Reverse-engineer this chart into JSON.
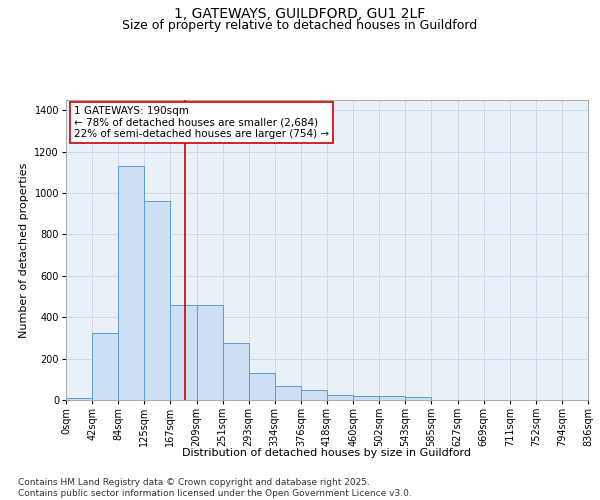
{
  "title_line1": "1, GATEWAYS, GUILDFORD, GU1 2LF",
  "title_line2": "Size of property relative to detached houses in Guildford",
  "xlabel": "Distribution of detached houses by size in Guildford",
  "ylabel": "Number of detached properties",
  "bin_labels": [
    "0sqm",
    "42sqm",
    "84sqm",
    "125sqm",
    "167sqm",
    "209sqm",
    "251sqm",
    "293sqm",
    "334sqm",
    "376sqm",
    "418sqm",
    "460sqm",
    "502sqm",
    "543sqm",
    "585sqm",
    "627sqm",
    "669sqm",
    "711sqm",
    "752sqm",
    "794sqm",
    "836sqm"
  ],
  "bar_heights": [
    10,
    325,
    1130,
    960,
    460,
    460,
    275,
    130,
    70,
    50,
    25,
    20,
    20,
    15,
    0,
    0,
    0,
    0,
    0,
    0,
    0
  ],
  "bar_color": "#ccdff3",
  "bar_edge_color": "#5b9bd5",
  "background_color": "#e8f0f8",
  "grid_color": "#d0d8e8",
  "red_line_x": 4.524,
  "annotation_text": "1 GATEWAYS: 190sqm\n← 78% of detached houses are smaller (2,684)\n22% of semi-detached houses are larger (754) →",
  "annotation_box_color": "#ffffff",
  "annotation_box_edge": "#cc0000",
  "ylim": [
    0,
    1450
  ],
  "yticks": [
    0,
    200,
    400,
    600,
    800,
    1000,
    1200,
    1400
  ],
  "footer_text": "Contains HM Land Registry data © Crown copyright and database right 2025.\nContains public sector information licensed under the Open Government Licence v3.0.",
  "title_fontsize": 10,
  "subtitle_fontsize": 9,
  "axis_label_fontsize": 8,
  "tick_fontsize": 7,
  "annotation_fontsize": 7.5,
  "footer_fontsize": 6.5
}
